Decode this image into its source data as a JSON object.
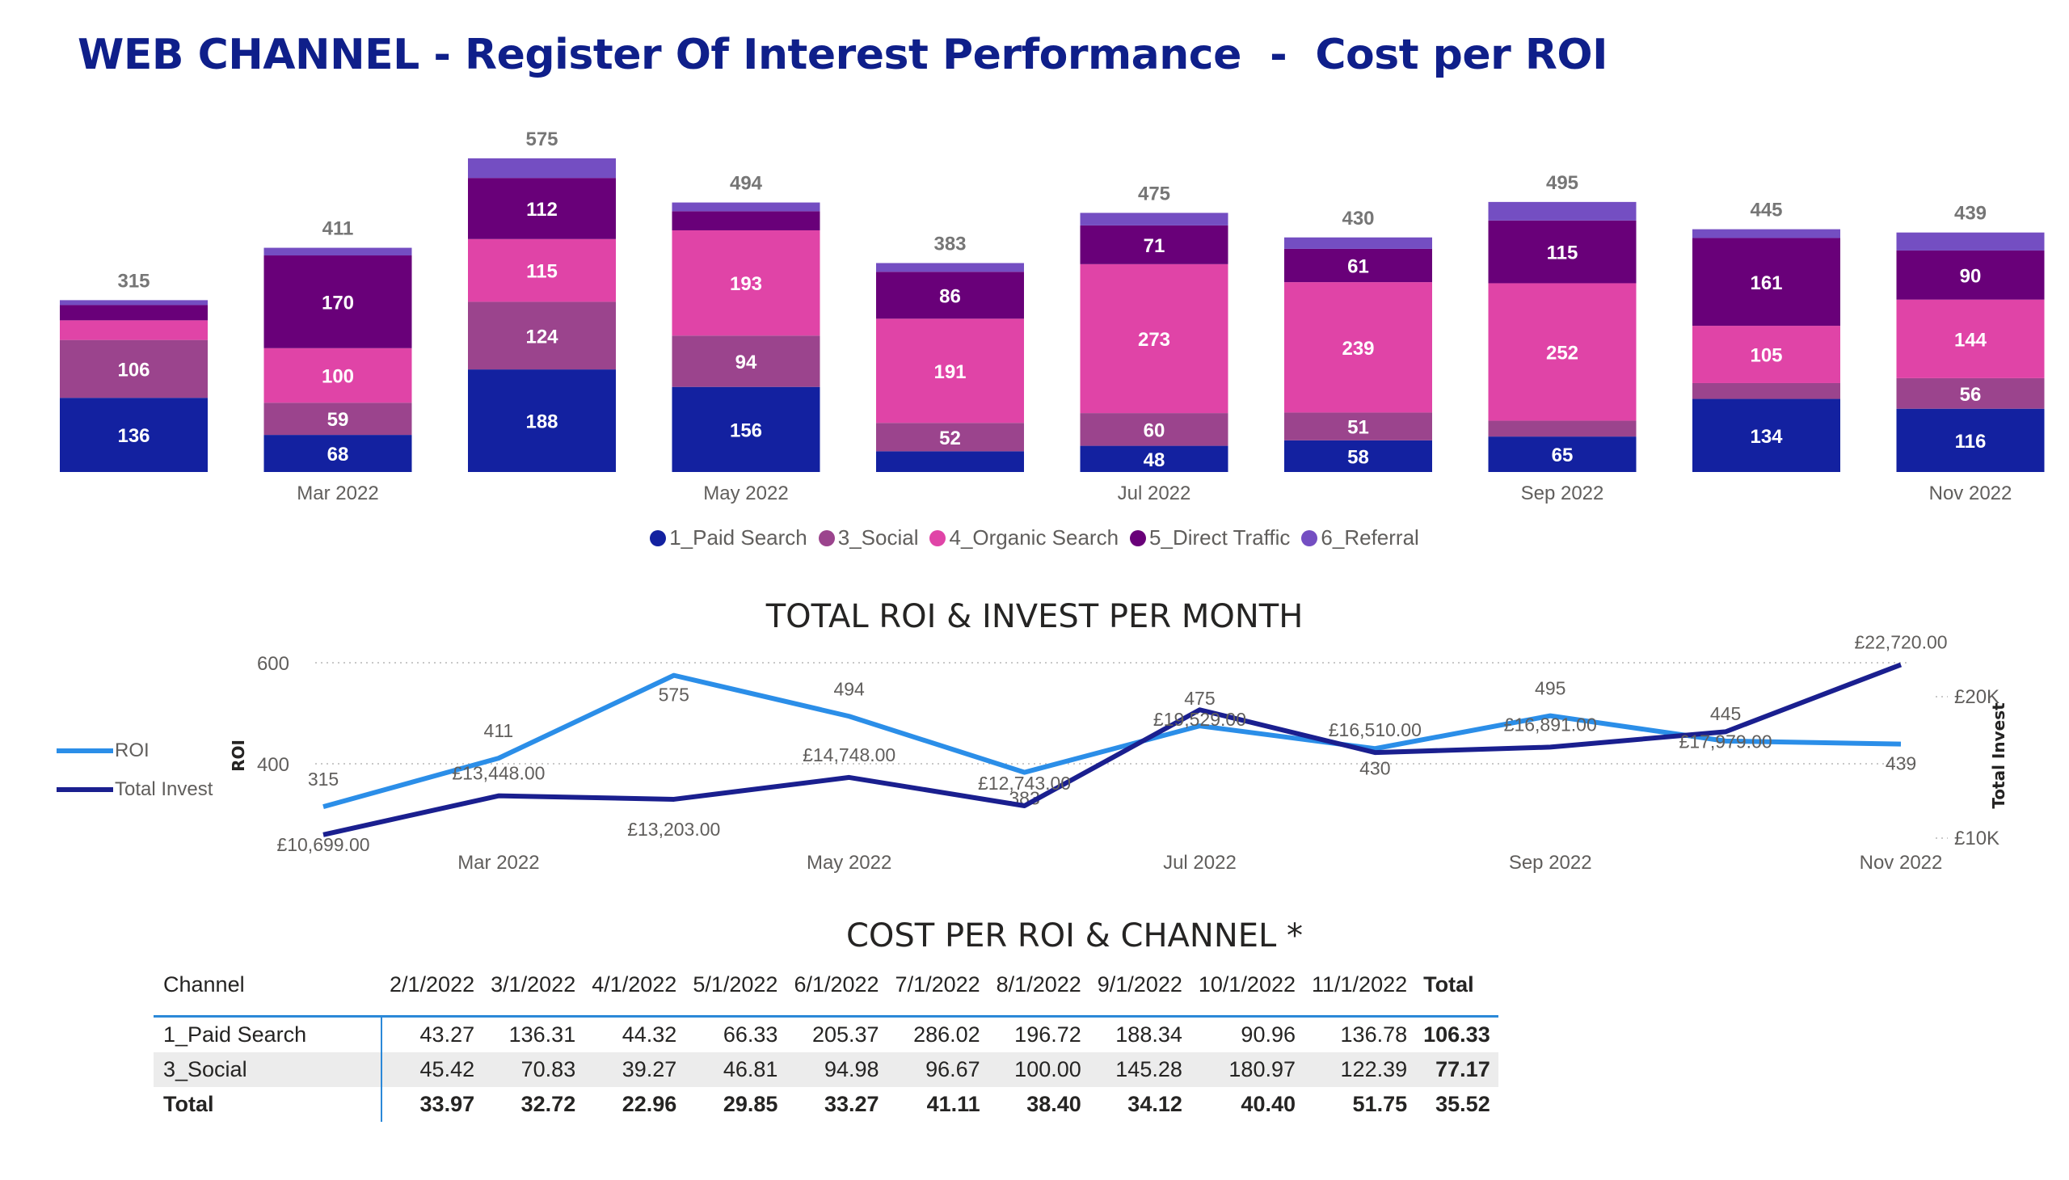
{
  "page_title": "WEB CHANNEL - Register Of Interest Performance  -  Cost per ROI",
  "colors": {
    "paid_search": "#1321a0",
    "social": "#9b448d",
    "organic_search": "#e044a7",
    "direct_traffic": "#690079",
    "referral": "#744ec2",
    "roi_line": "#2b8ee8",
    "invest_line": "#1a1f8f"
  },
  "chart_data": [
    {
      "type": "bar",
      "stacked": true,
      "title": "",
      "categories": [
        "Feb 2022",
        "Mar 2022",
        "Apr 2022",
        "May 2022",
        "Jun 2022",
        "Jul 2022",
        "Aug 2022",
        "Sep 2022",
        "Oct 2022",
        "Nov 2022"
      ],
      "x_tick_labels": [
        "",
        "Mar 2022",
        "",
        "May 2022",
        "",
        "Jul 2022",
        "",
        "Sep 2022",
        "",
        "Nov 2022"
      ],
      "totals": [
        315,
        411,
        575,
        494,
        383,
        475,
        430,
        495,
        445,
        439
      ],
      "series": [
        {
          "name": "1_Paid Search",
          "color_key": "paid_search",
          "values": [
            136,
            68,
            188,
            156,
            38,
            48,
            58,
            65,
            134,
            116
          ],
          "labels": [
            "136",
            "68",
            "188",
            "156",
            "",
            "48",
            "58",
            "65",
            "134",
            "116"
          ]
        },
        {
          "name": "3_Social",
          "color_key": "social",
          "values": [
            106,
            59,
            124,
            94,
            52,
            60,
            51,
            29,
            29,
            56
          ],
          "labels": [
            "106",
            "59",
            "124",
            "94",
            "52",
            "60",
            "51",
            "",
            "",
            "56"
          ]
        },
        {
          "name": "4_Organic Search",
          "color_key": "organic_search",
          "values": [
            36,
            100,
            115,
            193,
            191,
            273,
            239,
            252,
            105,
            144
          ],
          "labels": [
            "",
            "100",
            "115",
            "193",
            "191",
            "273",
            "239",
            "252",
            "105",
            "144"
          ]
        },
        {
          "name": "5_Direct Traffic",
          "color_key": "direct_traffic",
          "values": [
            28,
            170,
            112,
            35,
            86,
            71,
            61,
            115,
            161,
            90
          ],
          "labels": [
            "",
            "170",
            "112",
            "",
            "86",
            "71",
            "61",
            "115",
            "161",
            "90"
          ]
        },
        {
          "name": "6_Referral",
          "color_key": "referral",
          "values": [
            9,
            14,
            36,
            16,
            16,
            23,
            21,
            34,
            16,
            33
          ],
          "labels": [
            "",
            "",
            "",
            "",
            "",
            "",
            "",
            "",
            "",
            ""
          ]
        }
      ],
      "legend_position": "bottom-center",
      "ylim": [
        0,
        600
      ]
    },
    {
      "type": "line",
      "title": "TOTAL ROI & INVEST PER MONTH",
      "x": [
        "Feb 2022",
        "Mar 2022",
        "Apr 2022",
        "May 2022",
        "Jun 2022",
        "Jul 2022",
        "Aug 2022",
        "Sep 2022",
        "Oct 2022",
        "Nov 2022"
      ],
      "x_tick_labels": [
        "",
        "Mar 2022",
        "",
        "May 2022",
        "",
        "Jul 2022",
        "",
        "Sep 2022",
        "",
        "Nov 2022"
      ],
      "ylabel": "ROI",
      "y2label": "Total Invest",
      "y_ticks": [
        "600",
        "400"
      ],
      "y2_ticks": [
        "£20K",
        "£10K"
      ],
      "ylim": [
        240,
        600
      ],
      "y2lim": [
        10000,
        24000
      ],
      "series": [
        {
          "name": "ROI",
          "axis": "left",
          "color_key": "roi_line",
          "values": [
            315,
            411,
            575,
            494,
            383,
            475,
            430,
            495,
            445,
            439
          ],
          "labels": [
            "315",
            "411",
            "575",
            "494",
            "383",
            "475",
            "430",
            "495",
            "445",
            "439"
          ]
        },
        {
          "name": "Total Invest",
          "axis": "right",
          "color_key": "invest_line",
          "values": [
            10699,
            13448,
            13203,
            14748,
            12743,
            19529,
            16510,
            16891,
            17979,
            22720
          ],
          "labels": [
            "£10,699.00",
            "£13,448.00",
            "£13,203.00",
            "£14,748.00",
            "£12,743.00",
            "£19,529.00",
            "£16,510.00",
            "£16,891.00",
            "£17,979.00",
            "£22,720.00"
          ]
        }
      ],
      "legend_position": "left",
      "grid": true
    }
  ],
  "line_section_title": "TOTAL ROI & INVEST PER MONTH",
  "table_section_title": "COST PER ROI & CHANNEL *",
  "table": {
    "headers": [
      "Channel",
      "2/1/2022",
      "3/1/2022",
      "4/1/2022",
      "5/1/2022",
      "6/1/2022",
      "7/1/2022",
      "8/1/2022",
      "9/1/2022",
      "10/1/2022",
      "11/1/2022",
      "Total"
    ],
    "rows": [
      [
        "1_Paid Search",
        "43.27",
        "136.31",
        "44.32",
        "66.33",
        "205.37",
        "286.02",
        "196.72",
        "188.34",
        "90.96",
        "136.78",
        "106.33"
      ],
      [
        "3_Social",
        "45.42",
        "70.83",
        "39.27",
        "46.81",
        "94.98",
        "96.67",
        "100.00",
        "145.28",
        "180.97",
        "122.39",
        "77.17"
      ],
      [
        "Total",
        "33.97",
        "32.72",
        "22.96",
        "29.85",
        "33.27",
        "41.11",
        "38.40",
        "34.12",
        "40.40",
        "51.75",
        "35.52"
      ]
    ]
  }
}
